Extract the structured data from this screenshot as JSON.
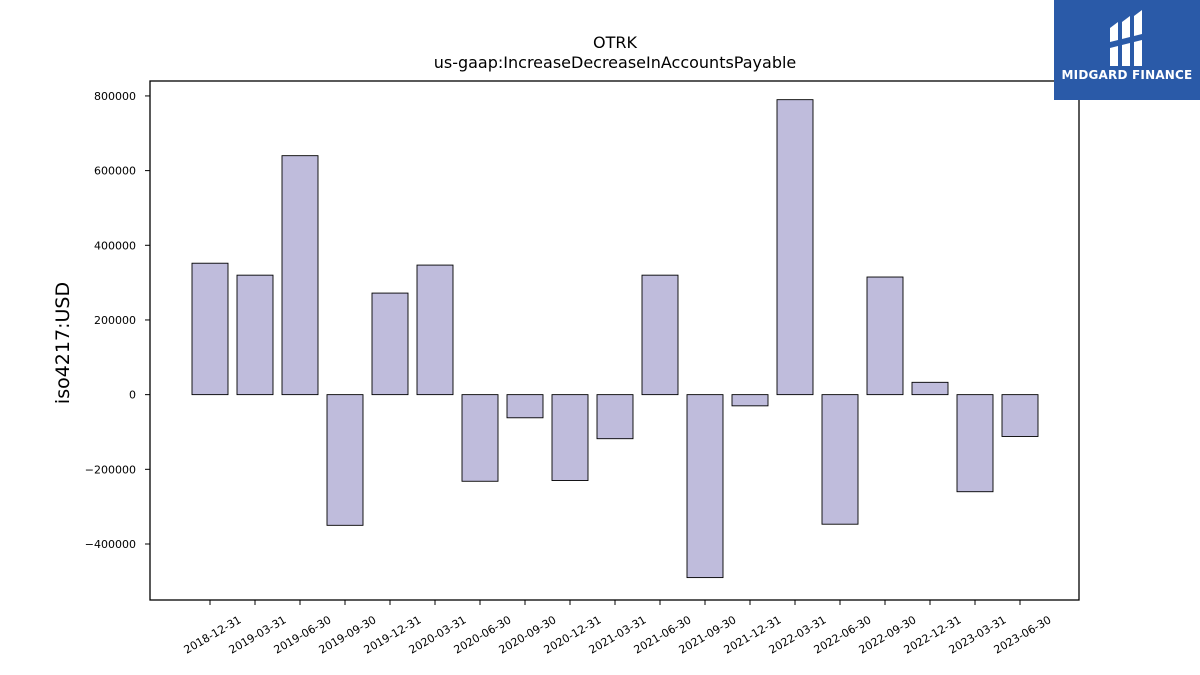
{
  "chart_data": {
    "type": "bar",
    "title": "OTRK",
    "subtitle": "us-gaap:IncreaseDecreaseInAccountsPayable",
    "xlabel": "",
    "ylabel": "iso4217:USD",
    "categories": [
      "2018-12-31",
      "2019-03-31",
      "2019-06-30",
      "2019-09-30",
      "2019-12-31",
      "2020-03-31",
      "2020-06-30",
      "2020-09-30",
      "2020-12-31",
      "2021-03-31",
      "2021-06-30",
      "2021-09-30",
      "2021-12-31",
      "2022-03-31",
      "2022-06-30",
      "2022-09-30",
      "2022-12-31",
      "2023-03-31",
      "2023-06-30"
    ],
    "values": [
      352000,
      320000,
      640000,
      -350000,
      272000,
      347000,
      -232000,
      -62000,
      -230000,
      -118000,
      320000,
      -490000,
      -30000,
      790000,
      -347000,
      315000,
      33000,
      -260000,
      -112000
    ],
    "ylim": [
      -550000,
      840000
    ],
    "yticks": [
      -400000,
      -200000,
      0,
      200000,
      400000,
      600000,
      800000
    ],
    "ytick_labels": [
      "−400000",
      "−200000",
      "0",
      "200000",
      "400000",
      "600000",
      "800000"
    ],
    "grid": false,
    "bar_color": "#bfbcdc",
    "bar_edge_color": "#000000"
  },
  "logo": {
    "text": "MIDGARD FINANCE",
    "background": "#2a5aa8"
  }
}
